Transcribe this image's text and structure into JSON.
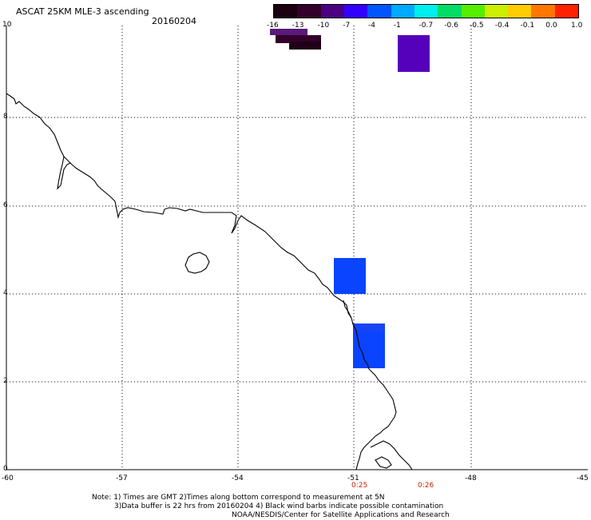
{
  "header": {
    "title": "ASCAT 25KM MLE-3 ascending",
    "date": "20160204"
  },
  "colorbar": {
    "labels": [
      "-16",
      "-13",
      "-10",
      "-7",
      "-4",
      "-1",
      "-0.7",
      "-0.6",
      "-0.5",
      "-0.4",
      "-0.1",
      "0.0",
      "1.0"
    ],
    "colors": [
      "#1a0010",
      "#33002b",
      "#4b0082",
      "#3300ff",
      "#0055ff",
      "#00aaff",
      "#00eeee",
      "#00dd66",
      "#55ee00",
      "#ccee00",
      "#ffcc00",
      "#ff7700",
      "#ff2200"
    ]
  },
  "axes": {
    "x_ticks": [
      "-60",
      "-57",
      "-54",
      "-51",
      "-48",
      "-45"
    ],
    "y_ticks": [
      "10",
      "8",
      "6",
      "4",
      "2",
      "0"
    ]
  },
  "time_labels": [
    "0:25",
    "0:26"
  ],
  "notes": {
    "line1": "Note: 1) Times are GMT 2)Times along bottom correspond to measurement at 5N",
    "line2": "3)Data buffer is 22 hrs from 20160204 4) Black wind barbs indicate possible contamination",
    "line3": "NOAA/NESDIS/Center for Satellite Applications and Research"
  },
  "data_cells": [
    {
      "lon": -52.4,
      "lat": 9.82,
      "color": "#33002b"
    },
    {
      "lon": -52.1,
      "lat": 9.72,
      "color": "#1a0010"
    },
    {
      "lon": -52.6,
      "lat": 9.82,
      "color": "#4b0082"
    },
    {
      "lon": -49.8,
      "lat": 9.45,
      "color": "#5500bb"
    },
    {
      "lon": -51.2,
      "lat": 4.4,
      "color": "#0a44ff"
    },
    {
      "lon": -50.6,
      "lat": 2.8,
      "color": "#0a44ff"
    }
  ]
}
